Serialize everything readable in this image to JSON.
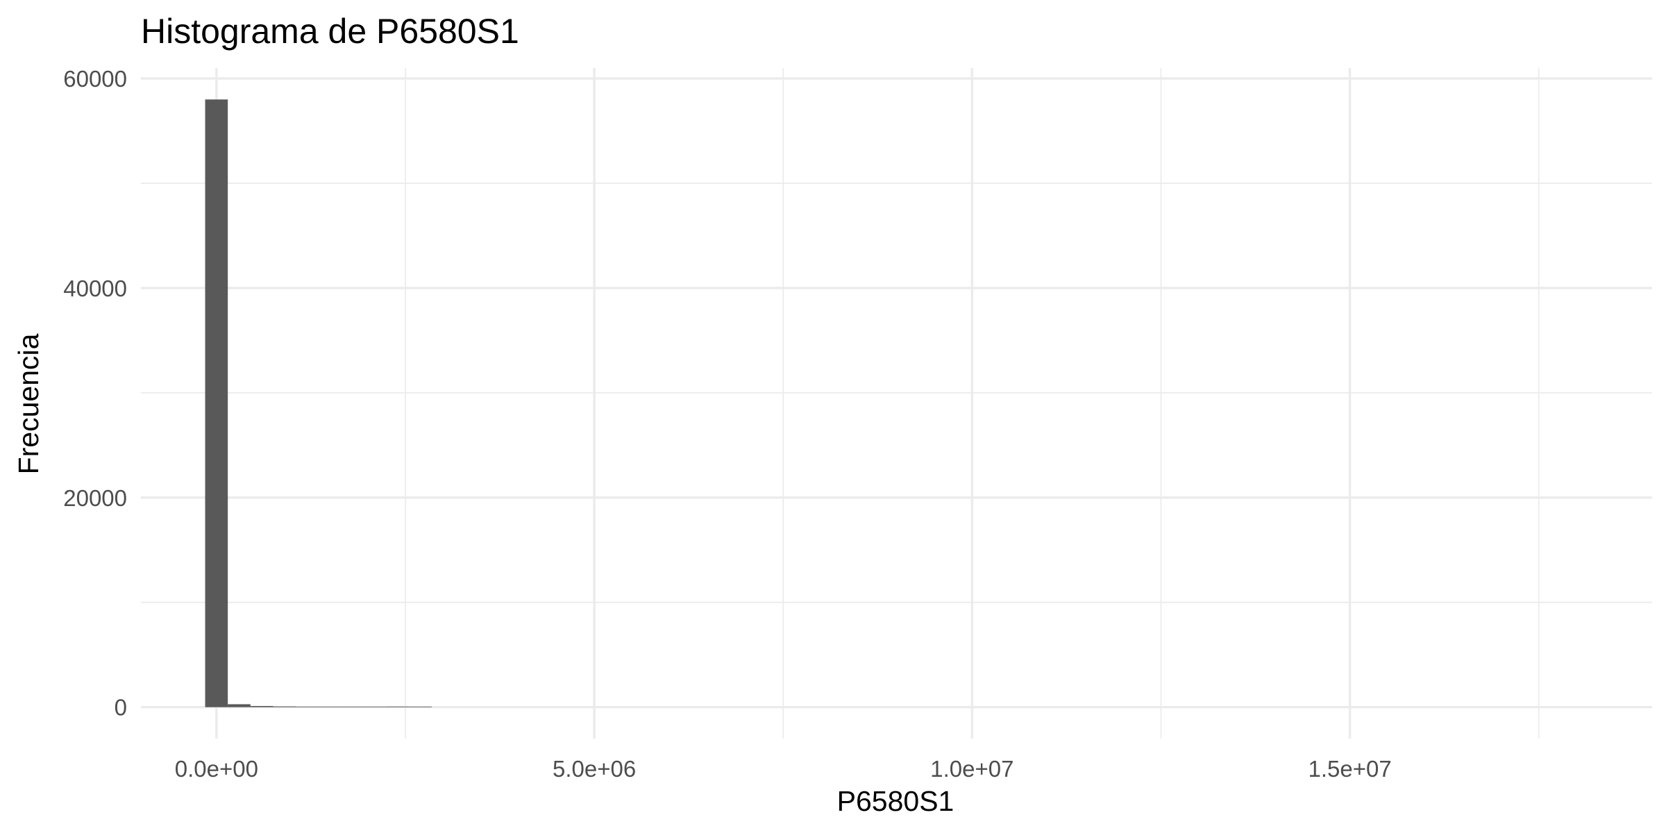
{
  "chart_data": {
    "type": "bar",
    "subtype": "histogram",
    "title": "Histograma de P6580S1",
    "xlabel": "P6580S1",
    "ylabel": "Frecuencia",
    "xlim": [
      -1000000,
      19000000
    ],
    "ylim": [
      -3000,
      61000
    ],
    "x_ticks": [
      {
        "value": 0,
        "label": "0.0e+00"
      },
      {
        "value": 5000000,
        "label": "5.0e+06"
      },
      {
        "value": 10000000,
        "label": "1.0e+07"
      },
      {
        "value": 15000000,
        "label": "1.5e+07"
      }
    ],
    "y_ticks": [
      {
        "value": 0,
        "label": "0"
      },
      {
        "value": 20000,
        "label": "20000"
      },
      {
        "value": 40000,
        "label": "40000"
      },
      {
        "value": 60000,
        "label": "60000"
      }
    ],
    "grid": true,
    "bar_color": "#595959",
    "bin_width": 300000,
    "bins": [
      {
        "x": 0,
        "count": 58000
      },
      {
        "x": 300000,
        "count": 280
      },
      {
        "x": 600000,
        "count": 110
      },
      {
        "x": 900000,
        "count": 70
      },
      {
        "x": 1200000,
        "count": 50
      },
      {
        "x": 1500000,
        "count": 40
      },
      {
        "x": 1800000,
        "count": 30
      },
      {
        "x": 2100000,
        "count": 10
      },
      {
        "x": 2400000,
        "count": 60
      },
      {
        "x": 2700000,
        "count": 5
      }
    ]
  }
}
